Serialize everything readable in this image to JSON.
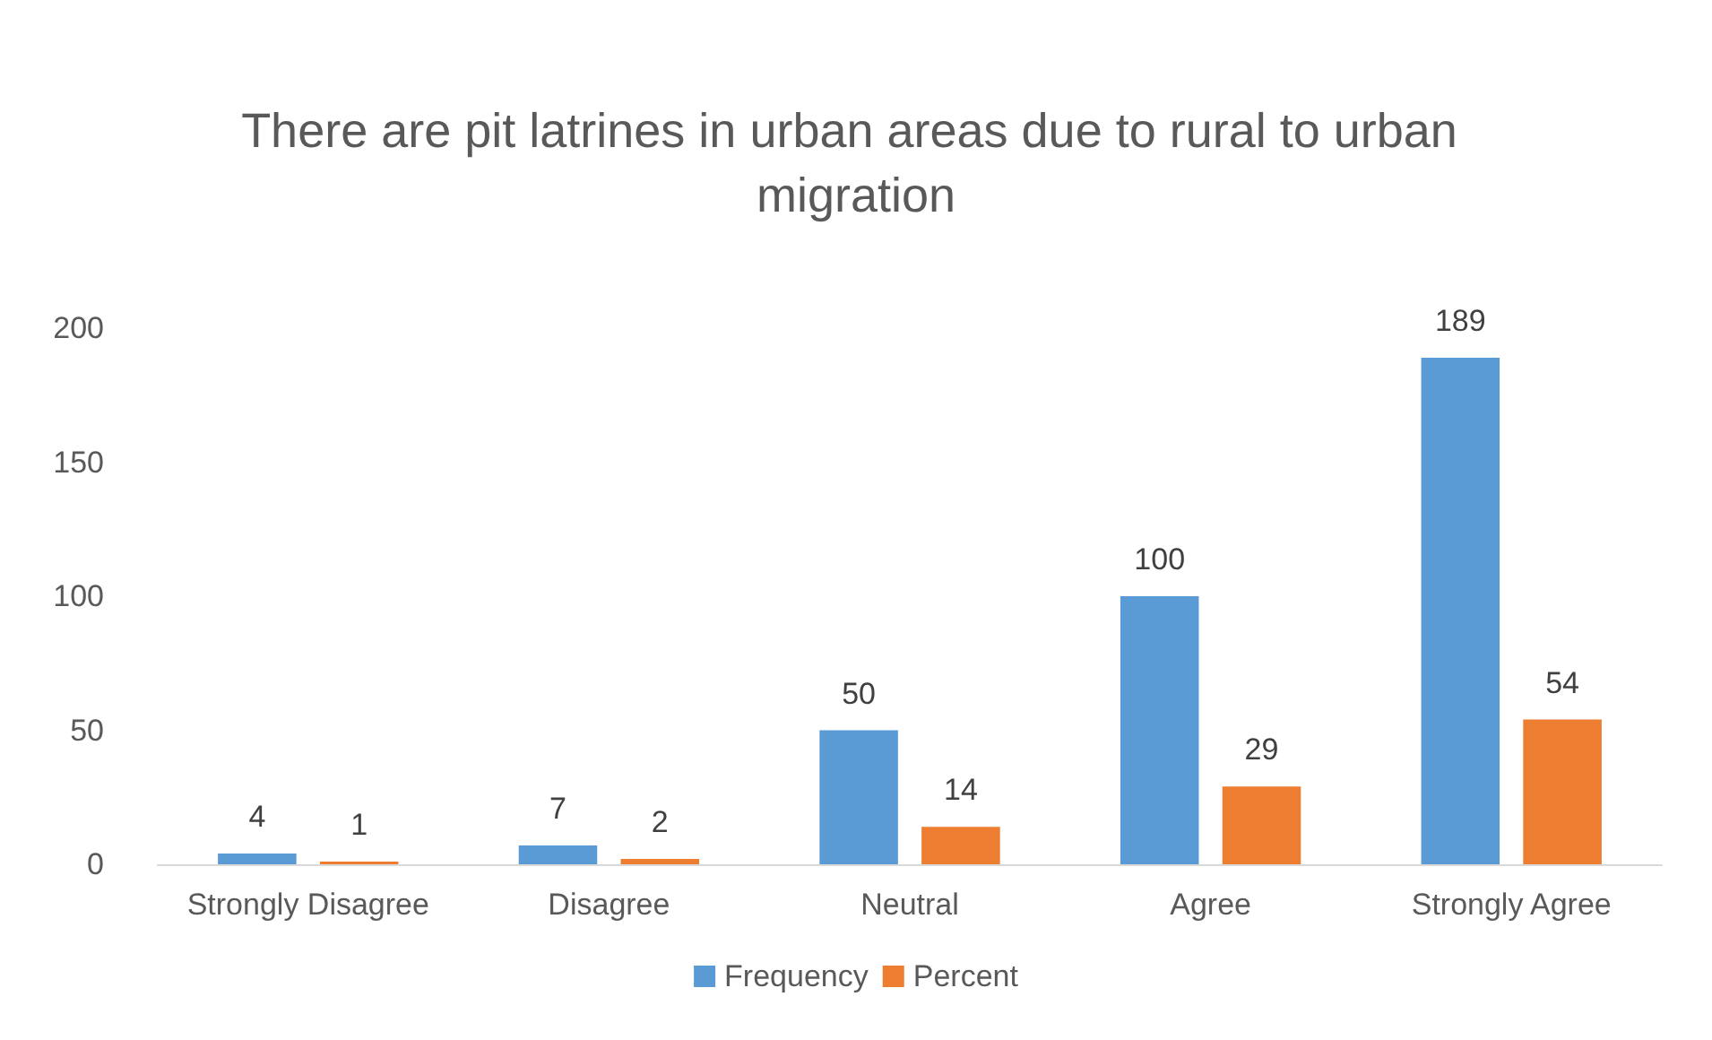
{
  "chart_data": {
    "type": "bar",
    "title": "There are pit latrines in urban areas due to rural to urban migration",
    "categories": [
      "Strongly Disagree",
      "Disagree",
      "Neutral",
      "Agree",
      "Strongly Agree"
    ],
    "series": [
      {
        "name": "Frequency",
        "color": "#5b9bd5",
        "values": [
          4,
          7,
          50,
          100,
          189
        ]
      },
      {
        "name": "Percent",
        "color": "#ed7d31",
        "values": [
          1,
          2,
          14,
          29,
          54
        ]
      }
    ],
    "ylim": [
      0,
      200
    ],
    "yticks": [
      0,
      50,
      100,
      150,
      200
    ],
    "grid": false,
    "legend": "bottom",
    "data_labels": true
  }
}
